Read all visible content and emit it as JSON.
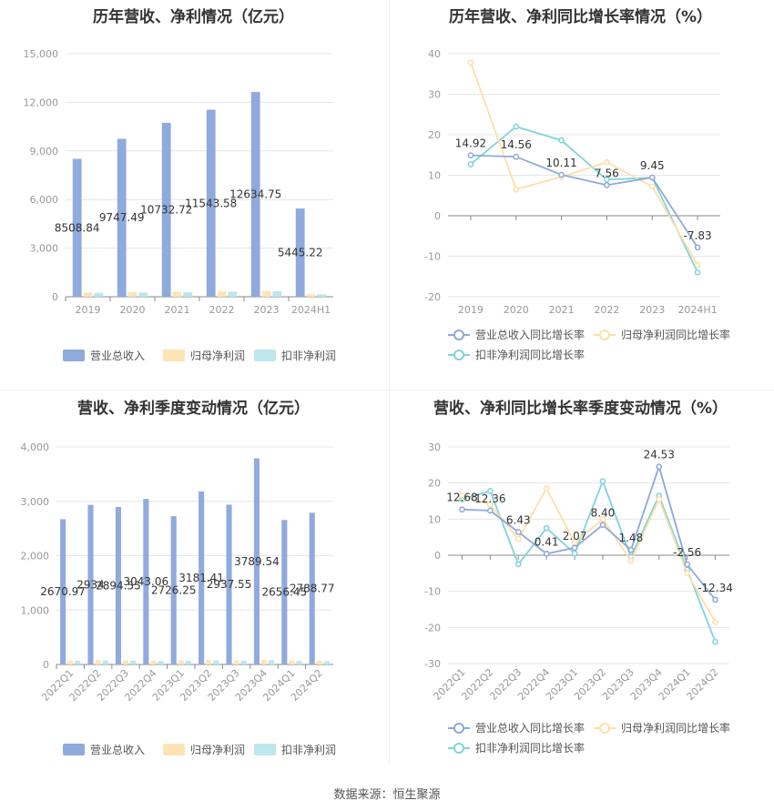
{
  "source_label": "数据来源：恒生聚源",
  "colors": {
    "revenue": "#8faadc",
    "net_profit": "#fde4b4",
    "deducted": "#bce7ec",
    "rev_line": "#8fa9d8",
    "np_line": "#fddfa8",
    "ded_line": "#7fd3dc"
  },
  "chart_data": [
    {
      "type": "bar",
      "title": "历年营收、净利情况（亿元）",
      "categories": [
        "2019",
        "2020",
        "2021",
        "2022",
        "2023",
        "2024H1"
      ],
      "ylim": [
        0,
        15000
      ],
      "yticks": [
        "0",
        "3,000",
        "6,000",
        "9,000",
        "12,000",
        "15,000"
      ],
      "ytick_values": [
        0,
        3000,
        6000,
        9000,
        12000,
        15000
      ],
      "series": [
        {
          "name": "营业总收入",
          "values": [
            8508.84,
            9747.49,
            10732.72,
            11543.58,
            12634.75,
            5445.22
          ],
          "labels": [
            "8508.84",
            "9747.49",
            "10732.72",
            "11543.58",
            "12634.75",
            "5445.22"
          ]
        },
        {
          "name": "归母净利润",
          "values": [
            260,
            280,
            300,
            330,
            360,
            160
          ]
        },
        {
          "name": "扣非净利润",
          "values": [
            240,
            265,
            285,
            315,
            345,
            150
          ]
        }
      ],
      "legend": "bottom"
    },
    {
      "type": "line",
      "title": "历年营收、净利同比增长率情况（%）",
      "categories": [
        "2019",
        "2020",
        "2021",
        "2022",
        "2023",
        "2024H1"
      ],
      "ylim": [
        -20,
        40
      ],
      "yticks": [
        "-20",
        "-10",
        "0",
        "10",
        "20",
        "30",
        "40"
      ],
      "ytick_values": [
        -20,
        -10,
        0,
        10,
        20,
        30,
        40
      ],
      "series": [
        {
          "name": "营业总收入同比增长率",
          "values": [
            14.92,
            14.56,
            10.11,
            7.56,
            9.45,
            -7.83
          ],
          "labels": [
            "14.92",
            "14.56",
            "10.11",
            "7.56",
            "9.45",
            "-7.83"
          ]
        },
        {
          "name": "归母净利润同比增长率",
          "values": [
            37.8,
            6.5,
            9.6,
            13.2,
            7.2,
            -12.2
          ]
        },
        {
          "name": "扣非净利润同比增长率",
          "values": [
            12.7,
            22.0,
            18.6,
            8.9,
            9.4,
            -14.0
          ]
        }
      ],
      "legend": "bottom"
    },
    {
      "type": "bar",
      "title": "营收、净利季度变动情况（亿元）",
      "categories": [
        "2022Q1",
        "2022Q2",
        "2022Q3",
        "2022Q4",
        "2023Q1",
        "2023Q2",
        "2023Q3",
        "2023Q4",
        "2024Q1",
        "2024Q2"
      ],
      "ylim": [
        0,
        4000
      ],
      "yticks": [
        "0",
        "1,000",
        "2,000",
        "3,000",
        "4,000"
      ],
      "ytick_values": [
        0,
        1000,
        2000,
        3000,
        4000
      ],
      "series": [
        {
          "name": "营业总收入",
          "values": [
            2670.97,
            2934,
            2894.55,
            3043.06,
            2726.25,
            3181.41,
            2937.55,
            3789.54,
            2656.45,
            2788.77
          ],
          "labels": [
            "2670.97",
            "2934",
            "2894.55",
            "3043.06",
            "2726.25",
            "3181.41",
            "2937.55",
            "3789.54",
            "2656.45",
            "2788.77"
          ]
        },
        {
          "name": "归母净利润",
          "values": [
            72,
            78,
            76,
            70,
            72,
            80,
            74,
            85,
            72,
            66
          ]
        },
        {
          "name": "扣非净利润",
          "values": [
            66,
            72,
            70,
            64,
            66,
            74,
            68,
            78,
            64,
            58
          ]
        }
      ],
      "legend": "bottom"
    },
    {
      "type": "line",
      "title": "营收、净利同比增长率季度变动情况（%）",
      "categories": [
        "2022Q1",
        "2022Q2",
        "2022Q3",
        "2022Q4",
        "2023Q1",
        "2023Q2",
        "2023Q3",
        "2023Q4",
        "2024Q1",
        "2024Q2"
      ],
      "ylim": [
        -30,
        30
      ],
      "yticks": [
        "-30",
        "-20",
        "-10",
        "0",
        "10",
        "20",
        "30"
      ],
      "ytick_values": [
        -30,
        -20,
        -10,
        0,
        10,
        20,
        30
      ],
      "series": [
        {
          "name": "营业总收入同比增长率",
          "values": [
            12.68,
            12.36,
            6.43,
            0.41,
            2.07,
            8.4,
            1.48,
            24.53,
            -2.56,
            -12.34
          ],
          "labels": [
            "12.68",
            "12.36",
            "6.43",
            "0.41",
            "2.07",
            "8.40",
            "1.48",
            "24.53",
            "-2.56",
            "-12.34"
          ]
        },
        {
          "name": "归母净利润同比增长率",
          "values": [
            16.5,
            14.0,
            4.5,
            18.5,
            3.5,
            10.0,
            -1.5,
            15.5,
            -5.0,
            -18.5
          ]
        },
        {
          "name": "扣非净利润同比增长率",
          "values": [
            15.5,
            17.8,
            -2.5,
            7.5,
            0.5,
            20.5,
            -0.5,
            16.5,
            -4.0,
            -24.0
          ]
        }
      ],
      "legend": "bottom"
    }
  ]
}
